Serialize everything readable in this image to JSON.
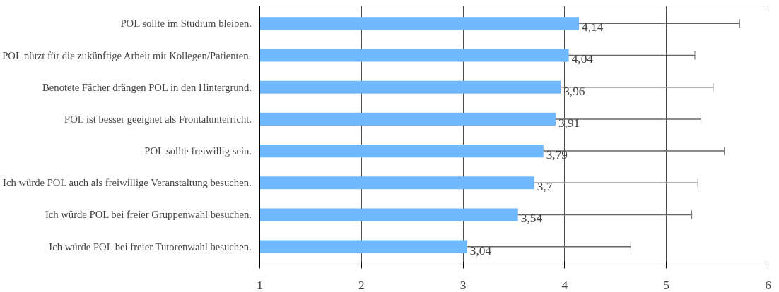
{
  "chart_data": {
    "type": "bar",
    "orientation": "horizontal",
    "categories": [
      "POL sollte im Studium bleiben.",
      "POL nützt für die zukünftige Arbeit mit Kollegen/Patienten.",
      "Benotete Fächer drängen POL in den Hintergrund.",
      "POL ist besser geeignet als Frontalunterricht.",
      "POL sollte freiwillig sein.",
      "Ich würde POL auch als freiwillige Veranstaltung besuchen.",
      "Ich würde POL bei freier Gruppenwahl besuchen.",
      "Ich würde POL bei freier Tutorenwahl besuchen."
    ],
    "values": [
      4.14,
      4.04,
      3.96,
      3.91,
      3.79,
      3.7,
      3.54,
      3.04
    ],
    "errors": [
      1.58,
      1.24,
      1.5,
      1.43,
      1.78,
      1.61,
      1.71,
      1.61
    ],
    "value_labels": [
      "4,14",
      "4,04",
      "3,96",
      "3,91",
      "3,79",
      "3,7",
      "3,54",
      "3,04"
    ],
    "color": "#70b8ff",
    "xlim": [
      1,
      6
    ],
    "xticks": [
      1,
      2,
      3,
      4,
      5,
      6
    ],
    "grid": "x"
  }
}
